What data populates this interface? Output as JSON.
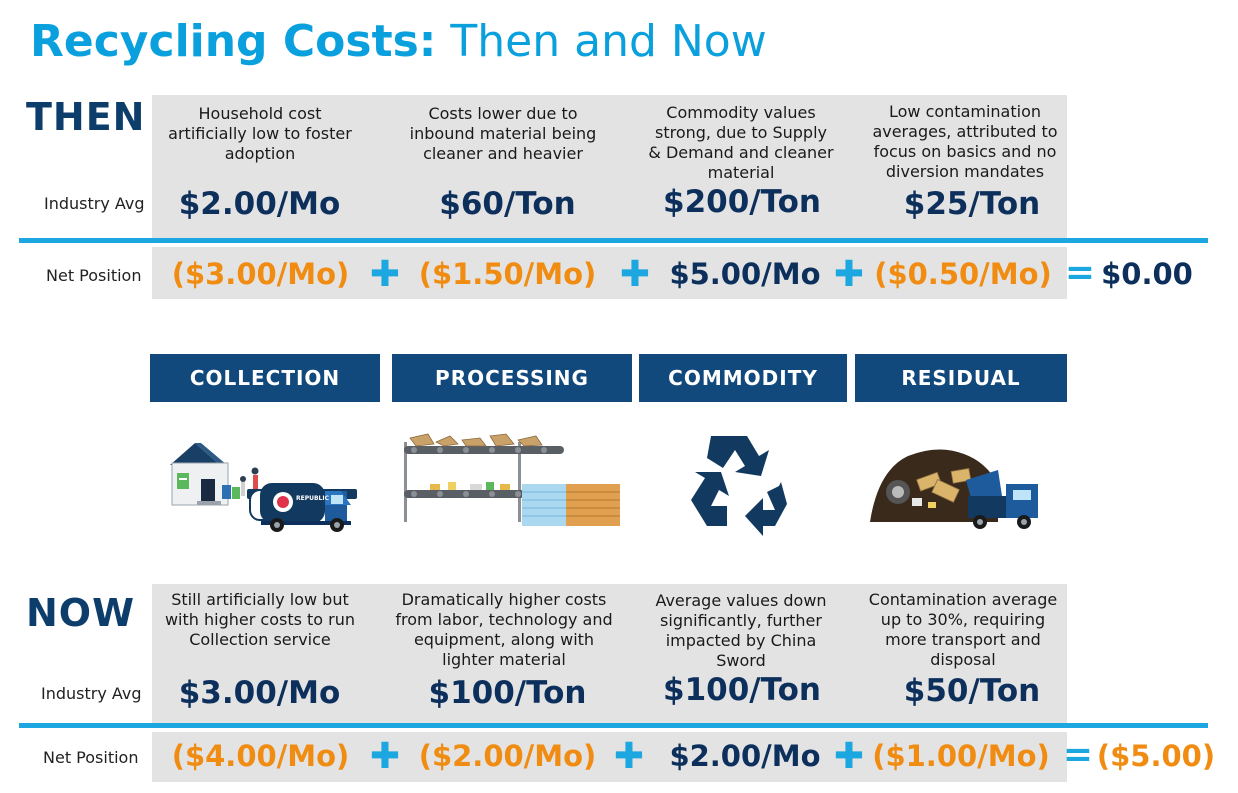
{
  "title": {
    "bold": "Recycling Costs:",
    "rest": "Then and Now"
  },
  "then": {
    "label": "THEN",
    "industry_label": "Industry Avg",
    "net_label": "Net Position",
    "columns": [
      {
        "desc": "Household cost artificially low to foster adoption",
        "price": "$2.00/Mo",
        "net": "($3.00/Mo)"
      },
      {
        "desc": "Costs lower due to inbound material being cleaner and heavier",
        "price": "$60/Ton",
        "net": "($1.50/Mo)"
      },
      {
        "desc": "Commodity values strong, due to Supply & Demand and cleaner material",
        "price": "$200/Ton",
        "net": "$5.00/Mo"
      },
      {
        "desc": "Low contamination averages, attributed to focus on basics and no diversion mandates",
        "price": "$25/Ton",
        "net": "($0.50/Mo)"
      }
    ],
    "total": "$0.00"
  },
  "tabs": [
    "COLLECTION",
    "PROCESSING",
    "COMMODITY",
    "RESIDUAL"
  ],
  "icons": [
    "house-truck-icon",
    "conveyor-icon",
    "recycle-icon",
    "landfill-truck-icon"
  ],
  "truck_brand": "REPUBLIC",
  "now": {
    "label": "NOW",
    "industry_label": "Industry Avg",
    "net_label": "Net Position",
    "columns": [
      {
        "desc": "Still artificially low but with higher costs to run Collection service",
        "price": "$3.00/Mo",
        "net": "($4.00/Mo)"
      },
      {
        "desc": "Dramatically higher costs from labor, technology and equipment, along with lighter material",
        "price": "$100/Ton",
        "net": "($2.00/Mo)"
      },
      {
        "desc": "Average values down significantly, further impacted by China Sword",
        "price": "$100/Ton",
        "net": "$2.00/Mo"
      },
      {
        "desc": "Contamination average up to 30%, requiring more transport and disposal",
        "price": "$50/Ton",
        "net": "($1.00/Mo)"
      }
    ],
    "total": "($5.00)"
  },
  "operators": {
    "plus": "✚",
    "equals": "="
  },
  "colors": {
    "title": "#0aa0de",
    "navy": "#0d2f5c",
    "orange": "#f08c12",
    "accent": "#1ca7e0",
    "tab": "#12497c"
  }
}
